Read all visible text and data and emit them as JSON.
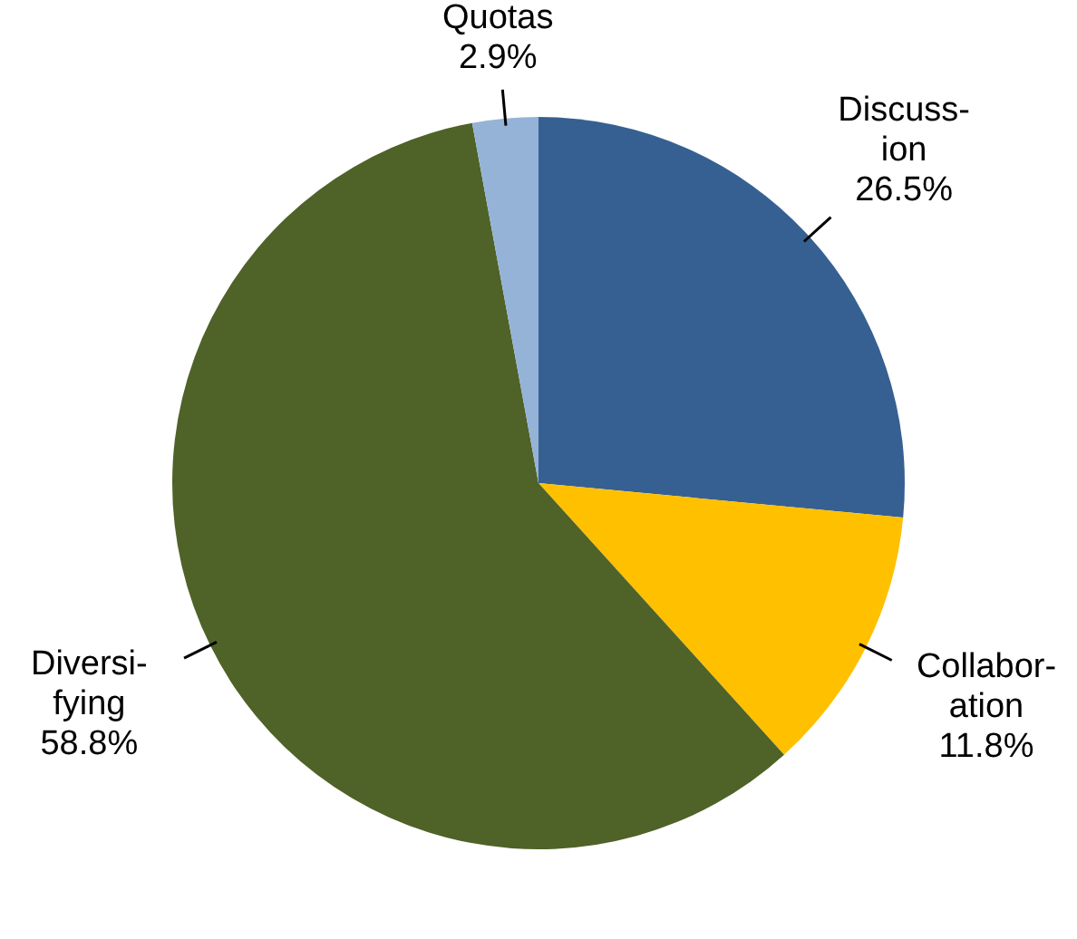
{
  "chart_data": {
    "type": "pie",
    "categories": [
      "Discuss-\nion",
      "Collabor-\nation",
      "Diversi-\nfying",
      "Quotas"
    ],
    "values": [
      26.5,
      11.8,
      58.8,
      2.9
    ],
    "colors": [
      "#366092",
      "#ffc000",
      "#4f6228",
      "#95b3d7"
    ],
    "value_labels": [
      "26.5%",
      "11.8%",
      "58.8%",
      "2.9%"
    ],
    "legend": false
  }
}
